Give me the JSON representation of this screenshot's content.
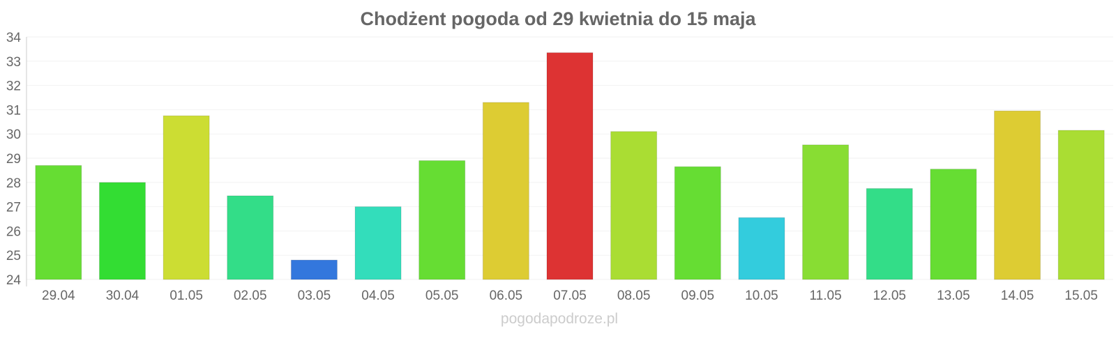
{
  "chart_data": {
    "type": "bar",
    "title": "Chodżent pogoda od 29 kwietnia do 15 maja",
    "xlabel": "",
    "ylabel": "",
    "ylim": [
      24,
      34
    ],
    "yticks": [
      "24",
      "25",
      "26",
      "27",
      "28",
      "29",
      "30",
      "31",
      "32",
      "33",
      "34"
    ],
    "grid": true,
    "categories": [
      "29.04",
      "30.04",
      "01.05",
      "02.05",
      "03.05",
      "04.05",
      "05.05",
      "06.05",
      "07.05",
      "08.05",
      "09.05",
      "10.05",
      "11.05",
      "12.05",
      "13.05",
      "14.05",
      "15.05"
    ],
    "values": [
      28.7,
      28.0,
      30.75,
      27.45,
      24.8,
      27.0,
      28.9,
      31.3,
      33.35,
      30.1,
      28.65,
      26.55,
      29.55,
      27.75,
      28.55,
      30.95,
      30.15
    ],
    "colors": [
      "#66dd33",
      "#33dd33",
      "#ccdd33",
      "#33dd88",
      "#3377dd",
      "#33ddbb",
      "#66dd33",
      "#ddcc33",
      "#dd3333",
      "#aadd33",
      "#66dd33",
      "#33ccdd",
      "#88dd33",
      "#33dd88",
      "#66dd33",
      "#ddcc33",
      "#aadd33"
    ]
  },
  "watermark": "pogodapodroze.pl"
}
